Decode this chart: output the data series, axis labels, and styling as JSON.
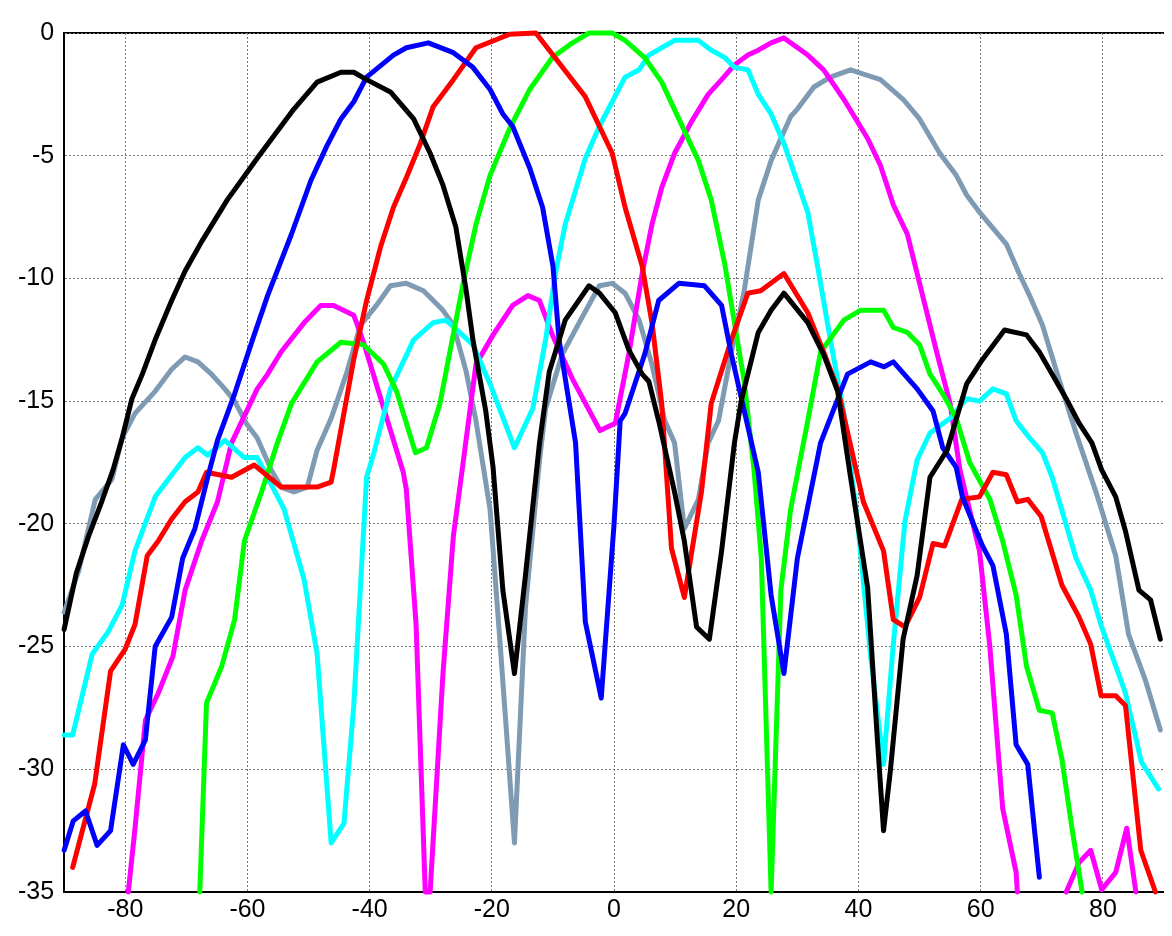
{
  "chart_data": {
    "type": "line",
    "xlim": [
      -90,
      90
    ],
    "ylim": [
      -35,
      0
    ],
    "xticks": [
      -80,
      -60,
      -40,
      -20,
      0,
      20,
      40,
      60,
      80
    ],
    "yticks": [
      -35,
      -30,
      -25,
      -20,
      -15,
      -10,
      -5,
      0
    ],
    "grid": true,
    "marker": "none",
    "line_style": "solid",
    "series": [
      {
        "color": "#000000",
        "x": [
          -90,
          -88,
          -86,
          -84,
          -82,
          -80.5,
          -78.9,
          -77.2,
          -75.1,
          -72.4,
          -70.2,
          -67.5,
          -63.3,
          -58.4,
          -52.4,
          -48.6,
          -44.7,
          -42.6,
          -40.5,
          -36.6,
          -32.8,
          -30.1,
          -28,
          -25.9,
          -24.2,
          -23.1,
          -21,
          -19.8,
          -18.2,
          -16.3,
          -14.5,
          -12.2,
          -10.6,
          -8,
          -4.1,
          -2.4,
          0.2,
          2.4,
          4.6,
          5.7,
          7.3,
          9.9,
          11.5,
          13.5,
          15.6,
          17.6,
          19.7,
          20.8,
          23.6,
          25.7,
          27.8,
          31.7,
          34.3,
          36.6,
          38.7,
          41.5,
          43.1,
          44.1,
          45.2,
          47.3,
          49.6,
          51.7,
          54.5,
          57.7,
          60.3,
          63.9,
          67.5,
          69.6,
          71.7,
          74,
          76.1,
          78.2,
          79.8,
          82.1,
          83.7,
          85.9,
          87.8,
          89.4
        ],
        "values": [
          -24.3,
          -22,
          -20.5,
          -19.2,
          -17.8,
          -16.5,
          -14.9,
          -13.9,
          -12.5,
          -10.9,
          -9.7,
          -8.5,
          -6.8,
          -5.1,
          -3.1,
          -2,
          -1.6,
          -1.6,
          -1.9,
          -2.4,
          -3.5,
          -4.9,
          -6.2,
          -7.9,
          -10.5,
          -12.5,
          -15.4,
          -17.7,
          -22.7,
          -26.1,
          -22.1,
          -16.7,
          -13.8,
          -11.7,
          -10.3,
          -10.6,
          -11.4,
          -12.9,
          -13.9,
          -14.2,
          -15.8,
          -18.7,
          -20.7,
          -24.2,
          -24.7,
          -21.1,
          -16.7,
          -15,
          -12.2,
          -11.3,
          -10.6,
          -11.8,
          -13.1,
          -14.6,
          -18.1,
          -22.6,
          -28.8,
          -32.5,
          -30.1,
          -24.7,
          -22.1,
          -18.1,
          -17,
          -14.3,
          -13.3,
          -12.1,
          -12.3,
          -13,
          -13.9,
          -14.9,
          -15.9,
          -16.7,
          -17.8,
          -18.9,
          -20.3,
          -22.7,
          -23.1,
          -24.7
        ]
      },
      {
        "color": "#0000ff",
        "x": [
          -90,
          -88.5,
          -86.5,
          -84.6,
          -82.4,
          -80.3,
          -78.7,
          -76.7,
          -75.1,
          -72.4,
          -70.6,
          -68.6,
          -66.5,
          -64.9,
          -62.1,
          -58.9,
          -56.7,
          -52.8,
          -49.6,
          -47,
          -44.7,
          -42.6,
          -40.5,
          -36.1,
          -34,
          -30.4,
          -26.3,
          -23.1,
          -20.3,
          -18.2,
          -16.6,
          -13.8,
          -11.7,
          -10,
          -9,
          -6.3,
          -4.7,
          -2.1,
          0,
          1,
          1.8,
          5,
          7.3,
          10.6,
          14.8,
          17.6,
          19.2,
          23.6,
          25.7,
          27.8,
          30,
          33.8,
          38.2,
          42,
          44.2,
          45.7,
          49.6,
          52.2,
          53.8,
          56,
          57,
          60.3,
          62,
          64.2,
          65.8,
          67.7,
          69.6
        ],
        "values": [
          -33.3,
          -32.1,
          -31.7,
          -33.1,
          -32.5,
          -29,
          -29.8,
          -28.8,
          -25,
          -23.8,
          -21.4,
          -20.2,
          -18.1,
          -16.6,
          -14.7,
          -12.3,
          -10.7,
          -8.2,
          -6,
          -4.6,
          -3.5,
          -2.8,
          -1.8,
          -0.9,
          -0.6,
          -0.4,
          -0.8,
          -1.4,
          -2.3,
          -3.3,
          -3.8,
          -5.5,
          -7.1,
          -9.5,
          -12.5,
          -16.7,
          -24,
          -27.1,
          -20,
          -15.8,
          -15.5,
          -13.1,
          -10.9,
          -10.2,
          -10.3,
          -11.1,
          -13.1,
          -17.9,
          -22.9,
          -26.1,
          -21.4,
          -16.7,
          -13.9,
          -13.4,
          -13.6,
          -13.4,
          -14.5,
          -15.4,
          -16.9,
          -17.7,
          -18.9,
          -20.9,
          -21.7,
          -24.5,
          -29,
          -29.8,
          -34.4
        ]
      },
      {
        "color": "#ff0000",
        "x": [
          -88.6,
          -85,
          -82.4,
          -80,
          -78.4,
          -76.4,
          -74.6,
          -72.4,
          -70.2,
          -68.1,
          -66.7,
          -62.6,
          -58.9,
          -54.5,
          -48.6,
          -46.3,
          -45.9,
          -42.6,
          -40.5,
          -38.2,
          -36.1,
          -34,
          -31.7,
          -29.6,
          -26.3,
          -22.6,
          -17.1,
          -12.8,
          -10,
          -4.7,
          -0.3,
          1.8,
          4.6,
          6.2,
          7.8,
          9.4,
          11.5,
          14.3,
          15.9,
          19.2,
          21.9,
          24,
          27.8,
          31.7,
          34.3,
          36.6,
          40.8,
          44.1,
          45.7,
          47.6,
          50,
          52.2,
          54.1,
          56.9,
          59.8,
          62,
          64.2,
          66,
          67.7,
          69.9,
          73.3,
          76.1,
          78,
          79.7,
          82.1,
          83.7,
          86.2,
          88.6
        ],
        "values": [
          -34,
          -30.6,
          -26,
          -25.1,
          -24.1,
          -21.3,
          -20.7,
          -19.8,
          -19.1,
          -18.7,
          -17.9,
          -18.1,
          -17.6,
          -18.5,
          -18.5,
          -18.3,
          -17.8,
          -13.3,
          -10.9,
          -8.7,
          -7.1,
          -5.9,
          -4.5,
          -3,
          -1.9,
          -0.6,
          -0.05,
          0,
          -0.9,
          -2.6,
          -4.9,
          -7.1,
          -9.5,
          -11.8,
          -15.1,
          -21,
          -23,
          -18.7,
          -15.1,
          -12.5,
          -10.6,
          -10.5,
          -9.8,
          -11.4,
          -13,
          -14.5,
          -19.1,
          -21.1,
          -23.9,
          -24.2,
          -23,
          -20.8,
          -20.9,
          -19,
          -18.9,
          -17.9,
          -18,
          -19.1,
          -19,
          -19.7,
          -22.5,
          -23.8,
          -24.9,
          -27,
          -27,
          -27.4,
          -33.3,
          -35
        ]
      },
      {
        "color": "#00ff00",
        "x": [
          -67.8,
          -66.7,
          -64.2,
          -62.1,
          -60.5,
          -57.7,
          -55.1,
          -52.8,
          -48.6,
          -44.7,
          -41,
          -37.7,
          -35.6,
          -32.5,
          -30.7,
          -28.5,
          -24.7,
          -22.6,
          -20.3,
          -17.1,
          -13.8,
          -10.1,
          -6.8,
          -4.1,
          -0.3,
          1.8,
          5,
          7.8,
          10.6,
          13.8,
          15.9,
          18.1,
          19.7,
          21.3,
          22.9,
          24.1,
          25.7,
          27.3,
          28.9,
          31.7,
          33.8,
          37.6,
          40.3,
          44.1,
          45.7,
          48,
          50,
          51.7,
          53.8,
          56,
          58.2,
          61.5,
          63.6,
          65.8,
          67.5,
          69.6,
          71.7,
          73.3,
          75,
          76.6
        ],
        "values": [
          -35,
          -27.3,
          -25.8,
          -23.9,
          -20.7,
          -18.7,
          -16.7,
          -15.1,
          -13.4,
          -12.6,
          -12.7,
          -13.5,
          -14.6,
          -17.1,
          -16.9,
          -15.1,
          -10.2,
          -7.8,
          -5.8,
          -3.9,
          -2.3,
          -1,
          -0.4,
          0,
          0,
          -0.3,
          -1,
          -2,
          -3.5,
          -5.2,
          -6.8,
          -9.4,
          -11.8,
          -14.2,
          -17.8,
          -21.4,
          -35,
          -22.7,
          -19.4,
          -15.8,
          -13,
          -11.7,
          -11.3,
          -11.3,
          -12,
          -12.2,
          -12.7,
          -13.9,
          -14.7,
          -15.7,
          -17.5,
          -19,
          -20.7,
          -22.9,
          -25.8,
          -27.6,
          -27.7,
          -29.6,
          -32.5,
          -35
        ]
      },
      {
        "color": "#00ffff",
        "x": [
          -90,
          -88.6,
          -85.4,
          -82.8,
          -80.5,
          -78.4,
          -75.1,
          -73,
          -70.2,
          -68.1,
          -66.5,
          -63.7,
          -60.5,
          -58.4,
          -54,
          -50.7,
          -48.6,
          -46.3,
          -44.2,
          -42.6,
          -40.5,
          -39.3,
          -36.6,
          -32.8,
          -29.6,
          -27.5,
          -23.1,
          -20.3,
          -16.3,
          -13.3,
          -11.2,
          -9.6,
          -8,
          -4.7,
          -2.4,
          -0.3,
          1.8,
          4.1,
          5.7,
          7.8,
          9.9,
          13.8,
          15.9,
          18.1,
          19.7,
          21.9,
          23.6,
          25.7,
          27.8,
          31.7,
          33.3,
          35.4,
          37.6,
          39.8,
          42,
          44.1,
          45.7,
          47.6,
          49.6,
          51.7,
          55,
          57.7,
          59.8,
          62,
          64.2,
          65.8,
          68,
          70.1,
          71.7,
          75.6,
          78,
          79.8,
          83.7,
          86.3,
          89.1
        ],
        "values": [
          -28.6,
          -28.6,
          -25.3,
          -24.4,
          -23.3,
          -21.1,
          -18.9,
          -18.2,
          -17.3,
          -16.9,
          -17.2,
          -16.6,
          -17.3,
          -17.3,
          -19.4,
          -22.3,
          -25.3,
          -33,
          -32.2,
          -27.4,
          -18.1,
          -17.1,
          -14.5,
          -12.5,
          -11.8,
          -11.7,
          -12.7,
          -14.3,
          -16.9,
          -15.3,
          -12.5,
          -9.8,
          -7.8,
          -5.1,
          -3.8,
          -2.8,
          -1.8,
          -1.5,
          -0.9,
          -0.6,
          -0.3,
          -0.3,
          -0.7,
          -1,
          -1.4,
          -1.5,
          -2.5,
          -3.3,
          -4.5,
          -7.3,
          -9.5,
          -12.5,
          -15.5,
          -19.8,
          -25.4,
          -29.8,
          -24.9,
          -19.9,
          -17.4,
          -16.3,
          -15.7,
          -14.9,
          -15,
          -14.5,
          -14.7,
          -15.8,
          -16.5,
          -17.1,
          -18.1,
          -21.4,
          -22.7,
          -24.2,
          -26.9,
          -29.7,
          -30.8
        ]
      },
      {
        "color": "#ff00ff",
        "x": [
          -79.5,
          -78.4,
          -76.7,
          -74.6,
          -72.2,
          -70.2,
          -67.5,
          -64.9,
          -62.6,
          -58.4,
          -56.7,
          -54.5,
          -50.7,
          -48,
          -45.9,
          -42.6,
          -41,
          -37.2,
          -34.5,
          -34,
          -32.4,
          -30.9,
          -30.1,
          -28,
          -26.3,
          -24.7,
          -22.6,
          -19.8,
          -16.6,
          -14.1,
          -12.2,
          -10.1,
          -6.8,
          -2.3,
          0.2,
          2.4,
          4.6,
          6.2,
          7.8,
          9.9,
          12.7,
          15.4,
          17.6,
          19.7,
          21.9,
          23.6,
          25.7,
          27.8,
          31.7,
          34.3,
          37.6,
          41.5,
          43.6,
          45.7,
          48,
          50,
          52.8,
          55,
          56.6,
          59.8,
          61.5,
          63.6,
          65.8,
          66,
          70,
          74,
          76.1,
          78,
          79.8,
          82.1,
          83.9,
          85.4
        ],
        "values": [
          -35,
          -32.4,
          -28,
          -26.9,
          -25.4,
          -22.7,
          -20.7,
          -19.1,
          -16.7,
          -14.5,
          -13.9,
          -13,
          -11.8,
          -11.1,
          -11.1,
          -11.5,
          -12.6,
          -15.7,
          -17.9,
          -18.6,
          -24.1,
          -35,
          -35,
          -26.1,
          -20.5,
          -17.5,
          -13.5,
          -12.3,
          -11.1,
          -10.7,
          -10.9,
          -12.3,
          -14.1,
          -16.2,
          -15.9,
          -13.1,
          -9.8,
          -7.8,
          -6.3,
          -4.9,
          -3.6,
          -2.5,
          -1.9,
          -1.3,
          -0.9,
          -0.7,
          -0.4,
          -0.2,
          -0.9,
          -1.5,
          -2.7,
          -4.3,
          -5.4,
          -7,
          -8.2,
          -10.2,
          -13,
          -15.1,
          -17.8,
          -21.1,
          -25,
          -31.6,
          -34.2,
          -35,
          null,
          -35,
          -33.8,
          -33.3,
          -34.9,
          -34.2,
          -32.4,
          -35
        ]
      },
      {
        "color": "#7f9ab3",
        "x": [
          -90,
          -87.6,
          -84.9,
          -82.2,
          -80.5,
          -78.4,
          -75.1,
          -72.4,
          -70.2,
          -68.1,
          -65.9,
          -63.7,
          -62.1,
          -60.2,
          -58.4,
          -56.1,
          -54.5,
          -52.4,
          -50.2,
          -48.6,
          -46.3,
          -43.7,
          -41.5,
          -38.9,
          -36.6,
          -34,
          -31.2,
          -28,
          -26.3,
          -24.2,
          -22.6,
          -20.3,
          -18.7,
          -16.3,
          -14.5,
          -12.2,
          -11.2,
          -8.5,
          -5.7,
          -2.4,
          -0.3,
          1.8,
          4.1,
          6.2,
          8.3,
          9.9,
          11.5,
          13.8,
          15.4,
          17.1,
          19.2,
          21.3,
          23.6,
          25.7,
          28.9,
          30,
          32.7,
          35.4,
          38.7,
          43.6,
          47.3,
          50,
          53.3,
          56,
          57.7,
          59.8,
          64.2,
          66.3,
          68,
          70.1,
          72.8,
          75.6,
          79,
          82.1,
          84.2,
          87,
          89.4
        ],
        "values": [
          -23.6,
          -21.9,
          -19,
          -18.2,
          -16.5,
          -15.5,
          -14.6,
          -13.7,
          -13.2,
          -13.4,
          -13.9,
          -14.5,
          -15,
          -15.9,
          -16.5,
          -17.8,
          -18.5,
          -18.7,
          -18.5,
          -17,
          -15.7,
          -13.8,
          -11.9,
          -11.1,
          -10.3,
          -10.2,
          -10.5,
          -11.3,
          -11.9,
          -13.8,
          -15.8,
          -19.4,
          -24.7,
          -33,
          -23.4,
          -17.4,
          -15.3,
          -13.1,
          -11.8,
          -10.3,
          -10.2,
          -10.6,
          -11.7,
          -13.5,
          -15.8,
          -16.7,
          -20.2,
          -19,
          -16.7,
          -15.8,
          -13,
          -10.5,
          -6.8,
          -5.2,
          -3.4,
          -3.1,
          -2.2,
          -1.8,
          -1.5,
          -1.9,
          -2.7,
          -3.5,
          -4.9,
          -5.8,
          -6.6,
          -7.3,
          -8.6,
          -9.8,
          -10.7,
          -11.9,
          -14.1,
          -16.3,
          -18.8,
          -21.3,
          -24.5,
          -26.4,
          -28.4
        ]
      }
    ]
  }
}
